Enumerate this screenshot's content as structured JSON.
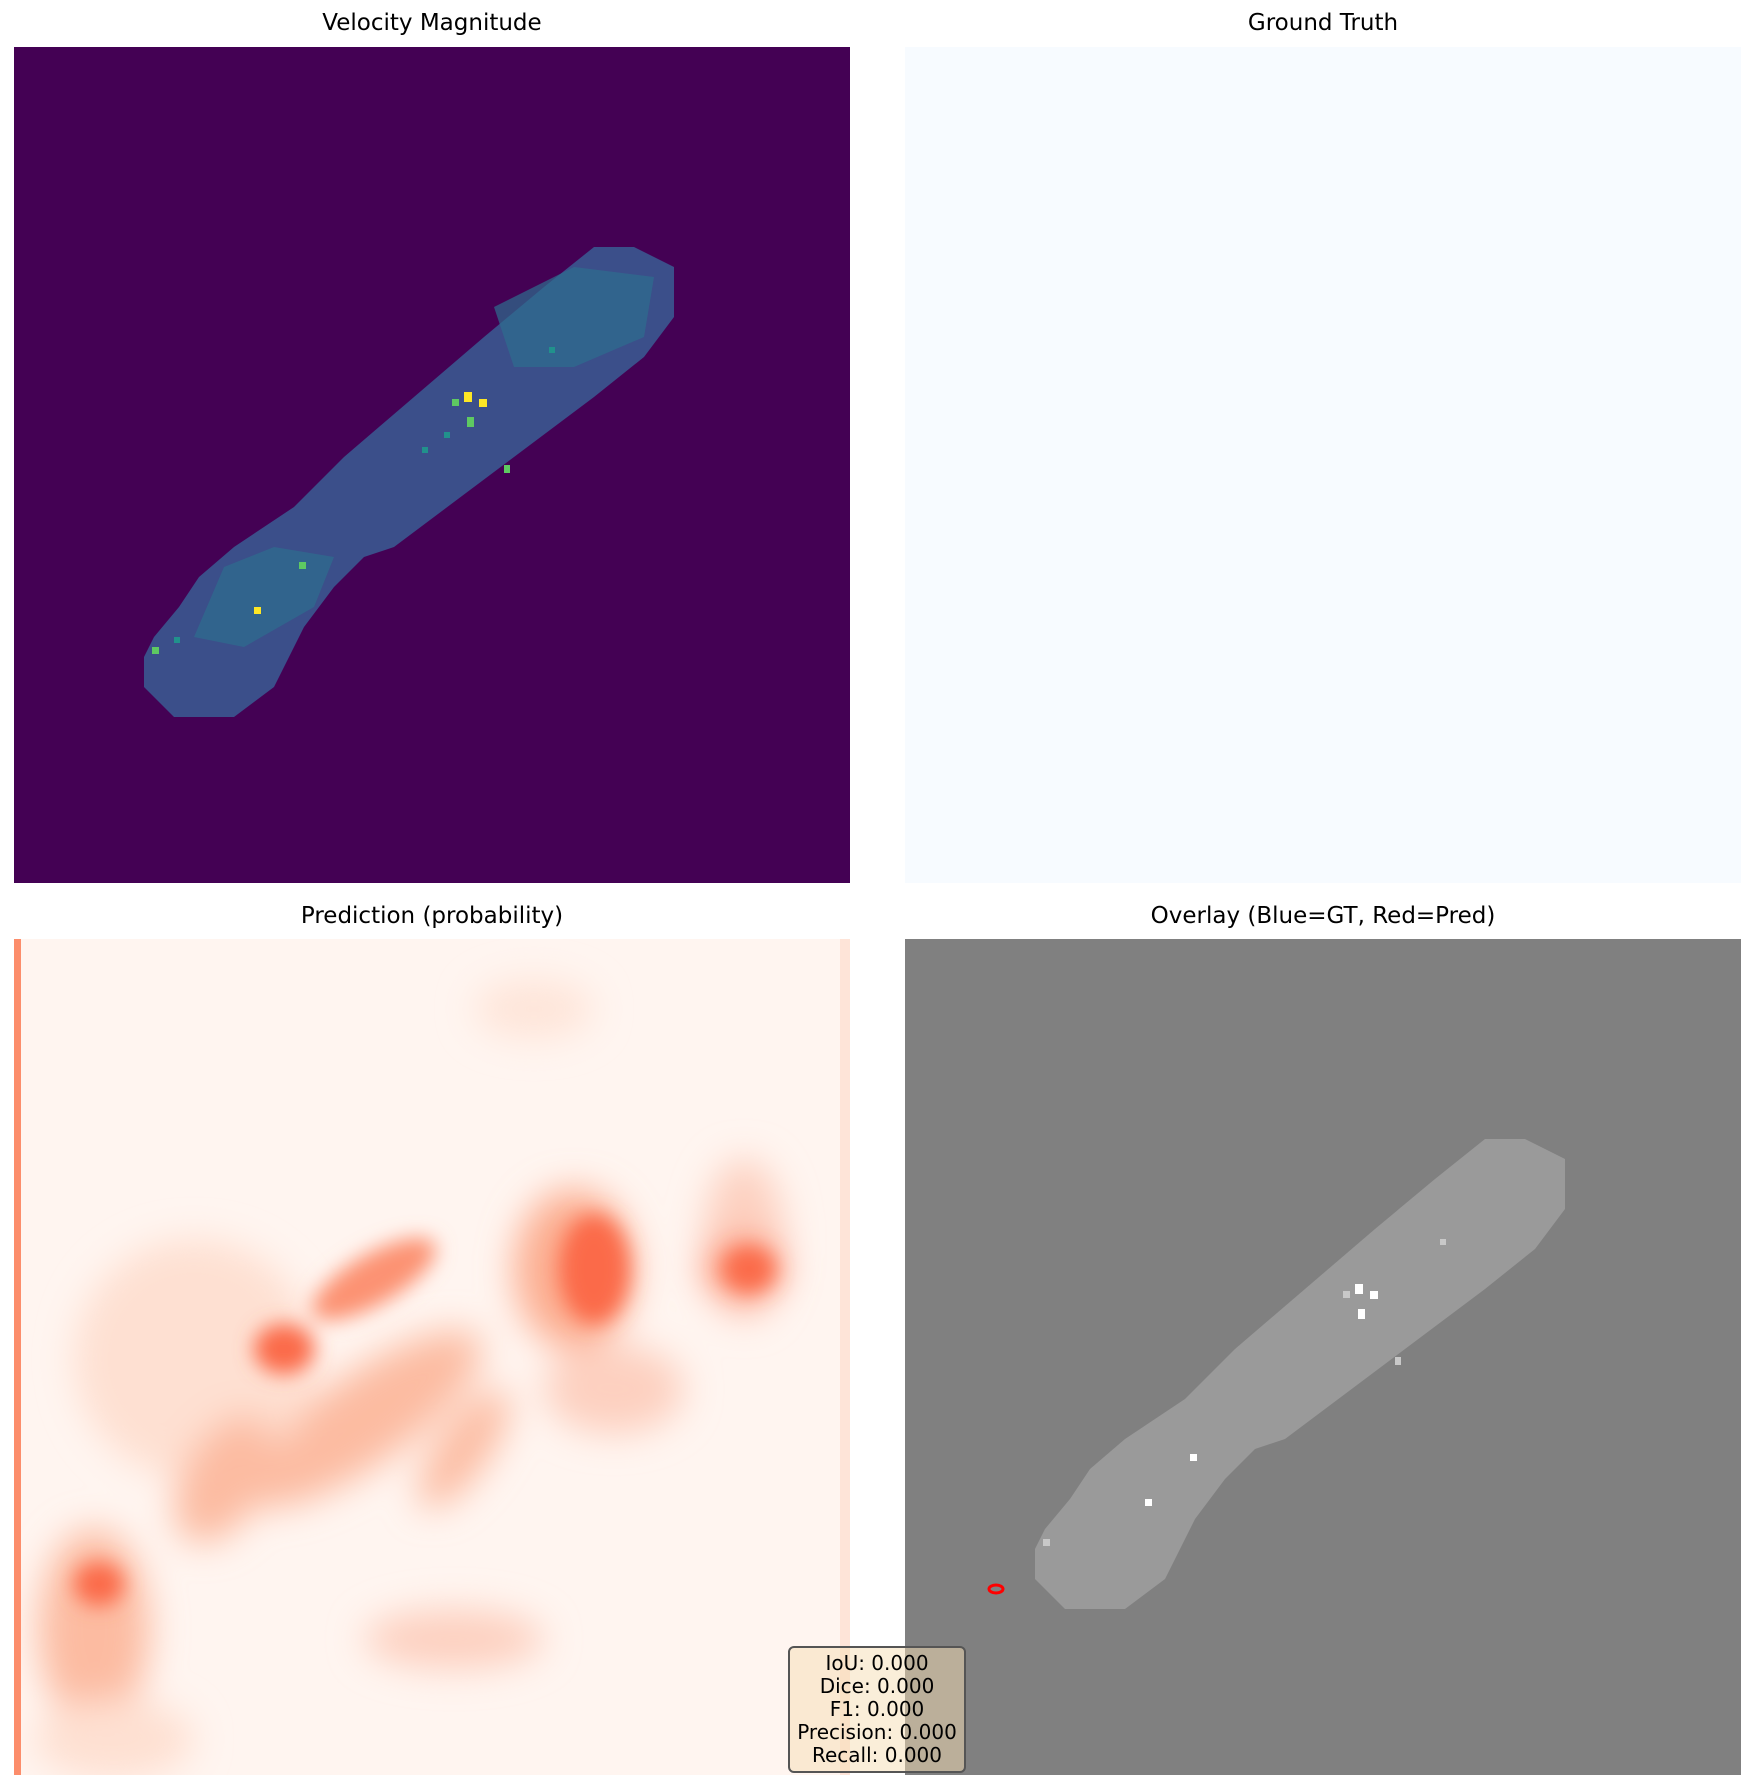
{
  "panels": {
    "velocity": {
      "title": "Velocity Magnitude",
      "colormap": "viridis",
      "background": "#440154"
    },
    "ground_truth": {
      "title": "Ground Truth",
      "colormap": "Blues",
      "background": "#f7fbff"
    },
    "prediction": {
      "title": "Prediction (probability)",
      "colormap": "Reds",
      "background": "#fff5f0"
    },
    "overlay": {
      "title": "Overlay (Blue=GT, Red=Pred)",
      "background": "#808080",
      "pred_color": "#ff0000"
    }
  },
  "metrics": {
    "iou": "IoU: 0.000",
    "dice": "Dice: 0.000",
    "f1": "F1: 0.000",
    "precision": "Precision: 0.000",
    "recall": "Recall: 0.000"
  }
}
